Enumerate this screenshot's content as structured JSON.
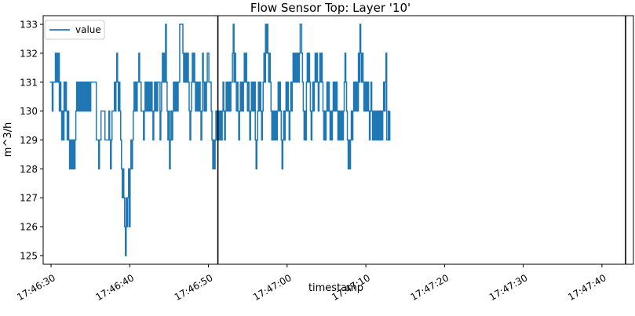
{
  "chart_data": {
    "type": "line",
    "title": "Flow Sensor Top: Layer '10'",
    "xlabel": "timestamp",
    "ylabel": "m^3/h",
    "x_start": "17:46:29",
    "x_end": "17:47:44",
    "x_ticks": [
      "17:46:30",
      "17:46:40",
      "17:46:50",
      "17:47:00",
      "17:47:10",
      "17:47:20",
      "17:47:30",
      "17:47:40"
    ],
    "y_ticks": [
      125,
      126,
      127,
      128,
      129,
      130,
      131,
      132,
      133
    ],
    "ylim": [
      124.7,
      133.3
    ],
    "vertical_lines": [
      "17:46:51.2",
      "17:47:43.0"
    ],
    "grid": false,
    "legend": {
      "position": "top-left",
      "label": "value"
    },
    "series": [
      {
        "name": "value",
        "color": "#1f77b4",
        "sample_interval_s": 0.1,
        "values": [
          131,
          131,
          131,
          130,
          131,
          131,
          131,
          132,
          131,
          132,
          131,
          132,
          130,
          131,
          130,
          129,
          130,
          129,
          131,
          130,
          131,
          130,
          129,
          130,
          129,
          128,
          129,
          128,
          129,
          128,
          129,
          128,
          129,
          130,
          131,
          130,
          131,
          130,
          131,
          130,
          131,
          130,
          131,
          130,
          131,
          130,
          131,
          130,
          131,
          130,
          131,
          130,
          131,
          131,
          131,
          131,
          131,
          131,
          131,
          129,
          129,
          129,
          128,
          129,
          129,
          130,
          130,
          130,
          130,
          130,
          129,
          129,
          129,
          129,
          129,
          130,
          129,
          128,
          129,
          130,
          130,
          130,
          131,
          130,
          131,
          132,
          131,
          130,
          131,
          130,
          129,
          128,
          127,
          128,
          127,
          126,
          125,
          127,
          126,
          127,
          128,
          126,
          128,
          129,
          128,
          129,
          130,
          131,
          130,
          131,
          130,
          131,
          131,
          132,
          131,
          131,
          130,
          130,
          130,
          129,
          130,
          131,
          130,
          131,
          130,
          131,
          130,
          131,
          130,
          131,
          130,
          129,
          130,
          131,
          130,
          131,
          130,
          131,
          131,
          131,
          129,
          130,
          131,
          132,
          131,
          132,
          131,
          133,
          131,
          130,
          129,
          130,
          128,
          129,
          130,
          129,
          130,
          131,
          130,
          131,
          130,
          131,
          130,
          131,
          131,
          133,
          133,
          133,
          133,
          132,
          131,
          132,
          131,
          132,
          131,
          132,
          131,
          130,
          129,
          130,
          131,
          132,
          131,
          132,
          131,
          130,
          131,
          130,
          131,
          130,
          131,
          130,
          129,
          130,
          132,
          131,
          130,
          131,
          130,
          131,
          132,
          132,
          131,
          131,
          131,
          130,
          129,
          128,
          129,
          128,
          129,
          130,
          129,
          130,
          129,
          130,
          129,
          130,
          129,
          130,
          131,
          130,
          129,
          130,
          131,
          130,
          131,
          130,
          131,
          130,
          131,
          131,
          132,
          133,
          131,
          132,
          131,
          130,
          131,
          130,
          129,
          130,
          131,
          130,
          131,
          130,
          131,
          132,
          131,
          132,
          131,
          130,
          131,
          130,
          129,
          130,
          131,
          130,
          131,
          130,
          131,
          129,
          128,
          129,
          130,
          131,
          130,
          131,
          130,
          129,
          130,
          131,
          132,
          131,
          133,
          132,
          133,
          132,
          131,
          132,
          131,
          130,
          129,
          130,
          129,
          130,
          129,
          130,
          129,
          130,
          131,
          130,
          131,
          130,
          129,
          128,
          129,
          130,
          129,
          130,
          131,
          130,
          131,
          130,
          129,
          130,
          131,
          130,
          131,
          132,
          131,
          132,
          131,
          132,
          131,
          132,
          131,
          132,
          133,
          133,
          132,
          131,
          130,
          129,
          130,
          129,
          131,
          132,
          131,
          132,
          131,
          130,
          129,
          130,
          131,
          130,
          131,
          132,
          131,
          132,
          131,
          130,
          131,
          132,
          131,
          132,
          131,
          130,
          129,
          130,
          129,
          130,
          131,
          130,
          131,
          130,
          129,
          130,
          129,
          130,
          131,
          130,
          131,
          130,
          131,
          130,
          129,
          130,
          129,
          130,
          129,
          130,
          129,
          130,
          131,
          132,
          131,
          130,
          129,
          128,
          129,
          128,
          129,
          130,
          129,
          130,
          131,
          130,
          131,
          130,
          131,
          130,
          132,
          131,
          133,
          132,
          131,
          132,
          131,
          130,
          131,
          130,
          131,
          130,
          131,
          130,
          129,
          130,
          131,
          130,
          129,
          130,
          129,
          130,
          129,
          130,
          129,
          130,
          129,
          130,
          129,
          130,
          129,
          130,
          131,
          130,
          131,
          132,
          129,
          129,
          130,
          129,
          130
        ]
      }
    ]
  }
}
